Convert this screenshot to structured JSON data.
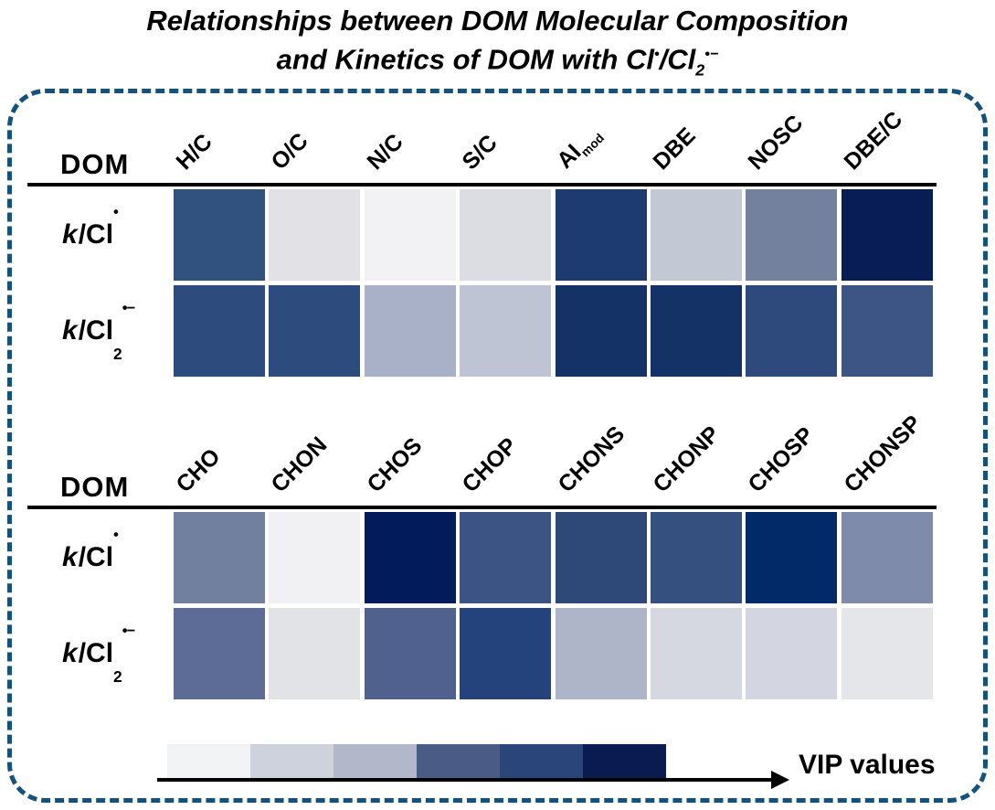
{
  "title": {
    "line1": "Relationships between DOM Molecular Composition",
    "line2_prefix": "and Kinetics of DOM with Cl",
    "line2_sup1": "•",
    "line2_mid": "/Cl",
    "line2_sub": "2",
    "line2_sup2": "•−"
  },
  "tables": [
    {
      "corner_label": "DOM",
      "columns": [
        {
          "label": "H/C",
          "sub": ""
        },
        {
          "label": "O/C",
          "sub": ""
        },
        {
          "label": "N/C",
          "sub": ""
        },
        {
          "label": "S/C",
          "sub": ""
        },
        {
          "label": "AI",
          "sub": "mod"
        },
        {
          "label": "DBE",
          "sub": ""
        },
        {
          "label": "NOSC",
          "sub": ""
        },
        {
          "label": "DBE/C",
          "sub": ""
        }
      ],
      "rows": [
        {
          "k": "k",
          "rest": "/Cl",
          "sub": "",
          "sup": "•"
        },
        {
          "k": "k",
          "rest": "/Cl",
          "sub": "2",
          "sup": "•−"
        }
      ]
    },
    {
      "corner_label": "DOM",
      "columns": [
        {
          "label": "CHO",
          "sub": ""
        },
        {
          "label": "CHON",
          "sub": ""
        },
        {
          "label": "CHOS",
          "sub": ""
        },
        {
          "label": "CHOP",
          "sub": ""
        },
        {
          "label": "CHONS",
          "sub": ""
        },
        {
          "label": "CHONP",
          "sub": ""
        },
        {
          "label": "CHOSP",
          "sub": ""
        },
        {
          "label": "CHONSP",
          "sub": ""
        }
      ],
      "rows": [
        {
          "k": "k",
          "rest": "/Cl",
          "sub": "",
          "sup": "•"
        },
        {
          "k": "k",
          "rest": "/Cl",
          "sub": "2",
          "sup": "•−"
        }
      ]
    }
  ],
  "legend": {
    "label": "VIP values",
    "direction": "low (left, light) to high (right, dark)",
    "swatches": [
      "#F2F3F5",
      "#CDD2DC",
      "#B2B8C9",
      "#4A5C85",
      "#2A4579",
      "#0A1B52"
    ]
  },
  "chart_data": [
    {
      "type": "heatmap",
      "title": "Relationships between DOM Molecular Composition and Kinetics of DOM with Cl•/Cl2•−",
      "subtitle": "Molecular descriptors vs rate constants",
      "columns": [
        "H/C",
        "O/C",
        "N/C",
        "S/C",
        "AImod",
        "DBE",
        "NOSC",
        "DBE/C"
      ],
      "rows": [
        "k/Cl•",
        "k/Cl2•−"
      ],
      "value_encoding": "cell color intensity encodes VIP value (darker blue = higher VIP)",
      "cell_colors": [
        [
          "#31517F",
          "#E2E2E6",
          "#F2F2F4",
          "#DCDDE3",
          "#1D3B71",
          "#C3C8D5",
          "#73809E",
          "#081C55"
        ],
        [
          "#2E4B7D",
          "#2E4B7D",
          "#A8B1C7",
          "#BEC4D4",
          "#143265",
          "#143265",
          "#2E4A7C",
          "#3D5585"
        ]
      ],
      "cell_intensity_rank_0to5": [
        [
          4,
          1,
          0,
          1,
          5,
          2,
          3,
          5
        ],
        [
          4,
          4,
          2,
          2,
          5,
          5,
          4,
          4
        ]
      ]
    },
    {
      "type": "heatmap",
      "subtitle": "Molecular formula classes vs rate constants",
      "columns": [
        "CHO",
        "CHON",
        "CHOS",
        "CHOP",
        "CHONS",
        "CHONP",
        "CHOSP",
        "CHONSP"
      ],
      "rows": [
        "k/Cl•",
        "k/Cl2•−"
      ],
      "value_encoding": "cell color intensity encodes VIP value (darker blue = higher VIP)",
      "cell_colors": [
        [
          "#72809F",
          "#F1F1F3",
          "#021B5B",
          "#3C5484",
          "#2E4877",
          "#35507F",
          "#032A68",
          "#7E8BAB"
        ],
        [
          "#5D6C96",
          "#E2E3E7",
          "#51618F",
          "#24437C",
          "#AEB5C9",
          "#D5D8E1",
          "#D3D6E0",
          "#E5E6E9"
        ]
      ],
      "cell_intensity_rank_0to5": [
        [
          3,
          0,
          5,
          4,
          4,
          4,
          5,
          3
        ],
        [
          3,
          1,
          3,
          4,
          2,
          1,
          1,
          1
        ]
      ]
    }
  ]
}
